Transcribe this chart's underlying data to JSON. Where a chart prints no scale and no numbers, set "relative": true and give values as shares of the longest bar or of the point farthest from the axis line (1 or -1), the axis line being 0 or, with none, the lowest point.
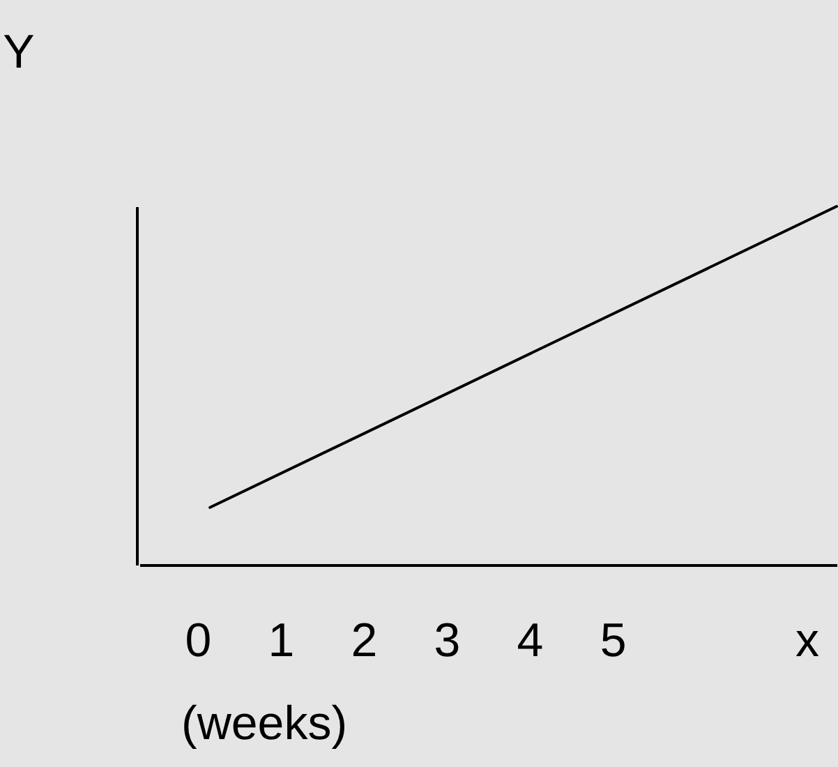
{
  "chart_data": {
    "type": "line",
    "relative": true,
    "xlabel": "x",
    "ylabel": "Y",
    "annotations": [
      "(weeks)"
    ],
    "x": [
      0.15,
      7.7
    ],
    "xlim": [
      -0.7,
      7.7
    ],
    "xticks": [
      0,
      1,
      2,
      3,
      4,
      5
    ],
    "series": [
      {
        "color": "#000000",
        "values": [
          0.16,
          1
        ]
      }
    ],
    "grid": false,
    "legend": false,
    "marker": "none",
    "line_style": "solid"
  }
}
